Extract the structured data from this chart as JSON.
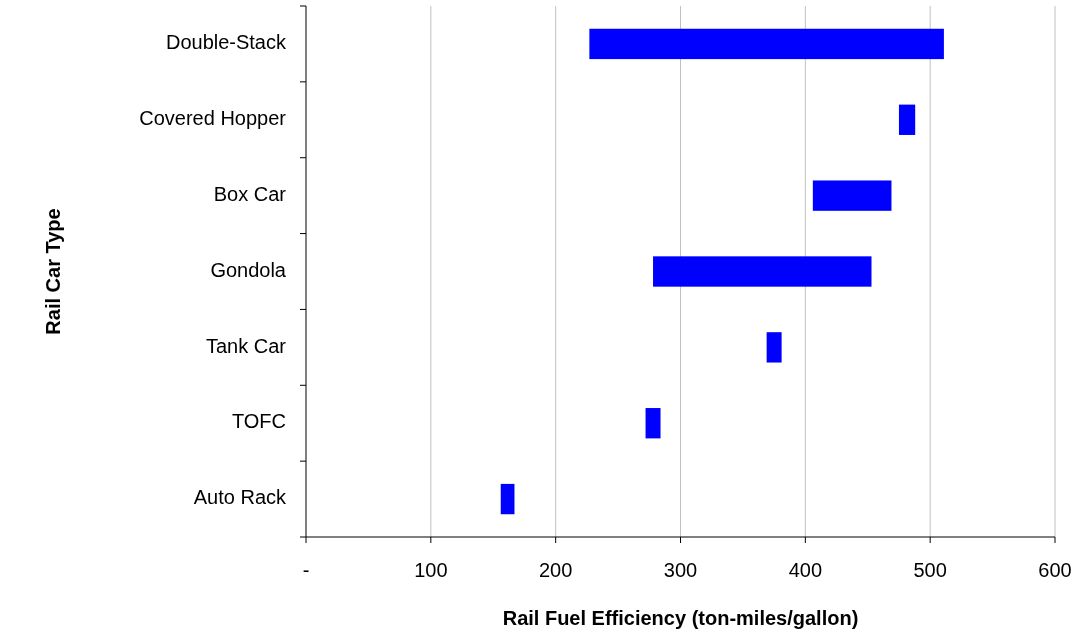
{
  "chart_data": {
    "type": "bar",
    "orientation": "horizontal",
    "xlabel": "Rail Fuel Efficiency (ton-miles/gallon)",
    "ylabel": "Rail Car Type",
    "categories": [
      "Double-Stack",
      "Covered Hopper",
      "Box Car",
      "Gondola",
      "Tank Car",
      "TOFC",
      "Auto Rack"
    ],
    "base": [
      227,
      475,
      406,
      278,
      369,
      272,
      156
    ],
    "values": [
      284,
      13,
      63,
      175,
      12,
      12,
      11
    ],
    "color": "#0000ff",
    "xlim": [
      0,
      600
    ],
    "xticks": [
      {
        "value": 0,
        "label": "-"
      },
      100,
      200,
      300,
      400,
      500,
      600
    ],
    "grid": "x"
  }
}
